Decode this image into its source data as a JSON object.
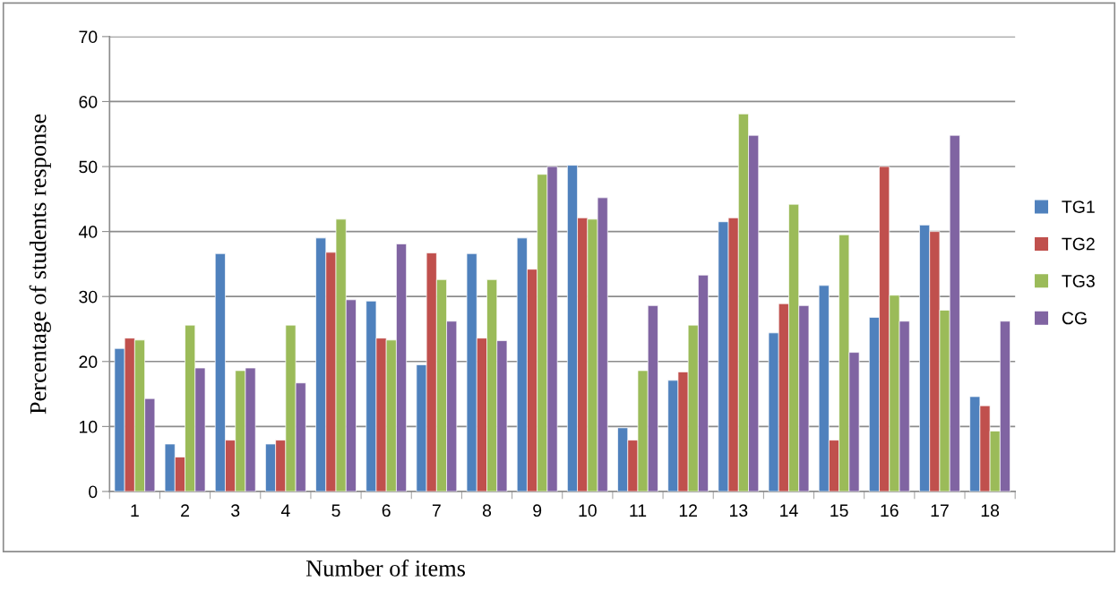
{
  "chart_data": {
    "type": "bar",
    "xlabel": "Number of items",
    "ylabel": "Percentage of students response",
    "categories": [
      "1",
      "2",
      "3",
      "4",
      "5",
      "6",
      "7",
      "8",
      "9",
      "10",
      "11",
      "12",
      "13",
      "14",
      "15",
      "16",
      "17",
      "18"
    ],
    "series": [
      {
        "name": "TG1",
        "color": "#4f81bd",
        "values": [
          22,
          7.3,
          36.6,
          7.3,
          39,
          29.3,
          19.5,
          36.6,
          39,
          50.2,
          9.8,
          17.1,
          41.5,
          24.4,
          31.7,
          26.8,
          41,
          14.6
        ]
      },
      {
        "name": "TG2",
        "color": "#c0504d",
        "values": [
          23.6,
          5.3,
          7.9,
          7.9,
          36.8,
          23.6,
          36.7,
          23.6,
          34.2,
          42.1,
          7.9,
          18.4,
          42.1,
          28.9,
          7.9,
          50,
          40,
          13.2
        ]
      },
      {
        "name": "TG3",
        "color": "#9bbb59",
        "values": [
          23.3,
          25.6,
          18.6,
          25.6,
          41.9,
          23.3,
          32.6,
          32.6,
          48.8,
          41.9,
          18.6,
          25.6,
          58.1,
          44.2,
          39.5,
          30.2,
          27.9,
          9.3
        ]
      },
      {
        "name": "CG",
        "color": "#8064a2",
        "values": [
          14.3,
          19,
          19,
          16.7,
          29.5,
          38.1,
          26.2,
          23.2,
          50,
          45.2,
          28.6,
          33.3,
          54.8,
          28.6,
          21.4,
          26.2,
          54.8,
          26.2
        ]
      }
    ],
    "ylim": [
      0,
      70
    ],
    "yticks": [
      0,
      10,
      20,
      30,
      40,
      50,
      60,
      70
    ],
    "grid": "y",
    "legend": "right"
  }
}
